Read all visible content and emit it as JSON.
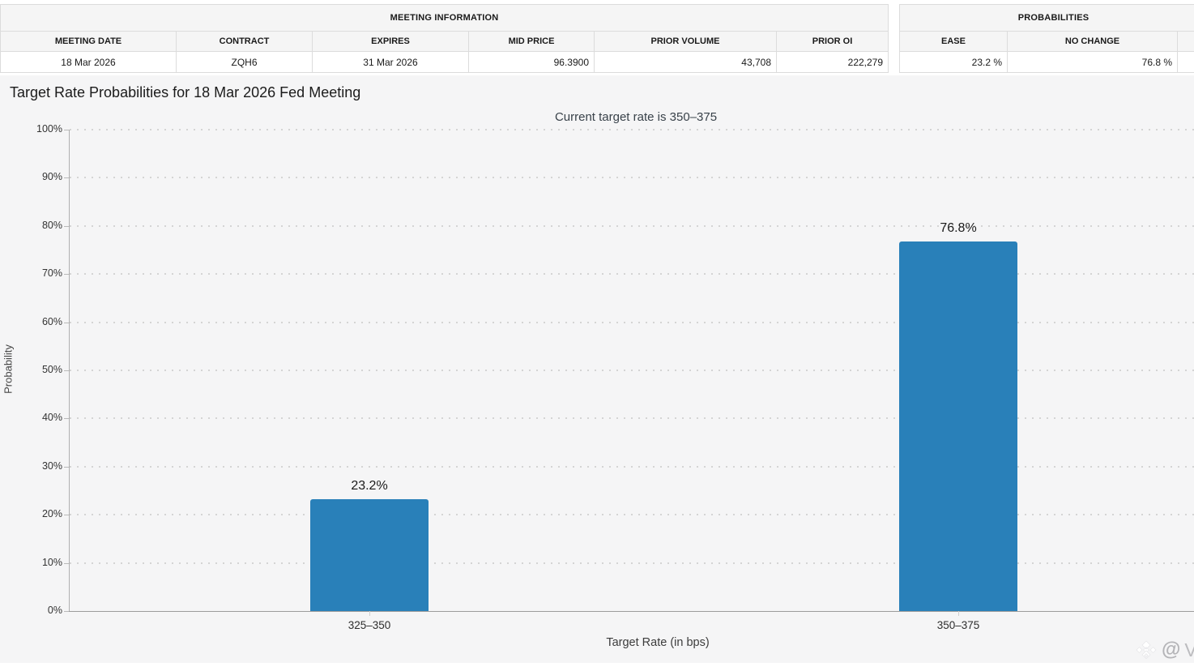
{
  "meeting_information": {
    "title": "MEETING INFORMATION",
    "columns": [
      "MEETING DATE",
      "CONTRACT",
      "EXPIRES",
      "MID PRICE",
      "PRIOR VOLUME",
      "PRIOR OI"
    ],
    "row": [
      "18 Mar 2026",
      "ZQH6",
      "31 Mar 2026",
      "96.3900",
      "43,708",
      "222,279"
    ]
  },
  "probabilities_panel": {
    "title": "PROBABILITIES",
    "columns": [
      "EASE",
      "NO CHANGE",
      ""
    ],
    "row": [
      "23.2 %",
      "76.8 %",
      ""
    ]
  },
  "chart_data": {
    "type": "bar",
    "title": "Target Rate Probabilities for 18 Mar 2026 Fed Meeting",
    "subtitle": "Current target rate is 350–375",
    "categories": [
      "325–350",
      "350–375"
    ],
    "values": [
      23.2,
      76.8
    ],
    "value_labels": [
      "23.2%",
      "76.8%"
    ],
    "xlabel": "Target Rate (in bps)",
    "ylabel": "Probability",
    "ylim": [
      0,
      100
    ],
    "ytick_step": 10,
    "ytick_suffix": "%",
    "grid": "dotted-horizontal",
    "legend": "none",
    "bar_color": "#2980b9"
  },
  "watermark": {
    "logo": "binance-diamond-logo",
    "at_text": "@",
    "partial_text": "V"
  }
}
